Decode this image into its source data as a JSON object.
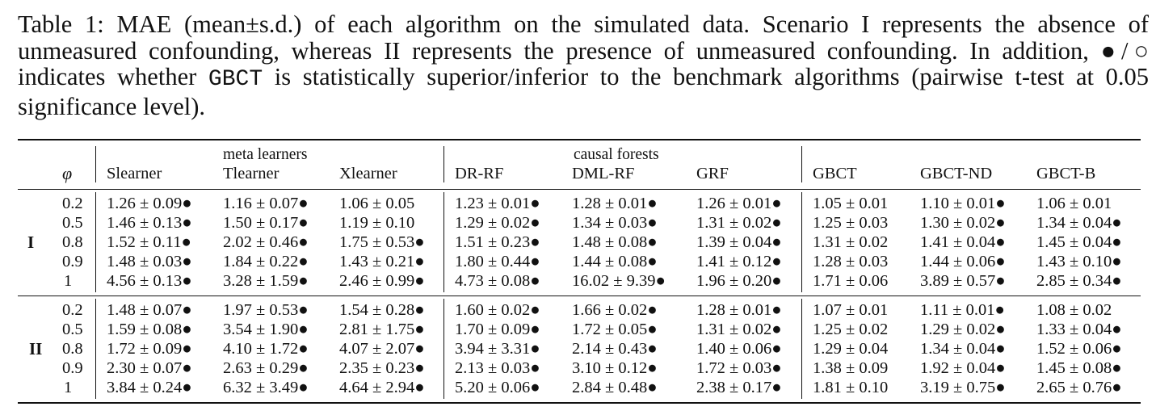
{
  "caption": {
    "p1": "Table 1: MAE (mean±s.d.) of each algorithm on the simulated data. Scenario I represents the absence of unmeasured confounding, whereas II represents the presence of unmeasured confounding. In addition, ●/○ indicates whether ",
    "code": "GBCT",
    "p2": " is statistically superior/inferior to the benchmark algorithms (pairwise t-test at 0.05 significance level)."
  },
  "table": {
    "groups": [
      "meta learners",
      "causal forests"
    ],
    "phi_header": "φ",
    "columns": [
      "Slearner",
      "Tlearner",
      "Xlearner",
      "DR-RF",
      "DML-RF",
      "GRF",
      "GBCT",
      "GBCT-ND",
      "GBCT-B"
    ],
    "scenarios": [
      {
        "label": "I",
        "rows": [
          {
            "phi": "0.2",
            "cells": [
              "1.26 ± 0.09●",
              "1.16 ± 0.07●",
              "1.06 ± 0.05",
              "1.23 ± 0.01●",
              "1.28 ± 0.01●",
              "1.26 ± 0.01●",
              "1.05 ± 0.01",
              "1.10 ± 0.01●",
              "1.06 ± 0.01"
            ]
          },
          {
            "phi": "0.5",
            "cells": [
              "1.46 ± 0.13●",
              "1.50 ± 0.17●",
              "1.19 ± 0.10",
              "1.29 ± 0.02●",
              "1.34 ± 0.03●",
              "1.31 ± 0.02●",
              "1.25 ± 0.03",
              "1.30 ± 0.02●",
              "1.34 ± 0.04●"
            ]
          },
          {
            "phi": "0.8",
            "cells": [
              "1.52 ± 0.11●",
              "2.02 ± 0.46●",
              "1.75 ± 0.53●",
              "1.51 ± 0.23●",
              "1.48 ± 0.08●",
              "1.39 ± 0.04●",
              "1.31 ± 0.02",
              "1.41 ± 0.04●",
              "1.45 ± 0.04●"
            ]
          },
          {
            "phi": "0.9",
            "cells": [
              "1.48 ± 0.03●",
              "1.84 ± 0.22●",
              "1.43 ± 0.21●",
              "1.80 ± 0.44●",
              "1.44 ± 0.08●",
              "1.41 ± 0.12●",
              "1.28 ± 0.03",
              "1.44 ± 0.06●",
              "1.43 ± 0.10●"
            ]
          },
          {
            "phi": "1",
            "cells": [
              "4.56 ± 0.13●",
              "3.28 ± 1.59●",
              "2.46 ± 0.99●",
              "4.73 ± 0.08●",
              "16.02 ± 9.39●",
              "1.96 ± 0.20●",
              "1.71 ± 0.06",
              "3.89 ± 0.57●",
              "2.85 ± 0.34●"
            ]
          }
        ]
      },
      {
        "label": "II",
        "rows": [
          {
            "phi": "0.2",
            "cells": [
              "1.48 ± 0.07●",
              "1.97 ± 0.53●",
              "1.54 ± 0.28●",
              "1.60 ± 0.02●",
              "1.66 ± 0.02●",
              "1.28 ± 0.01●",
              "1.07 ± 0.01",
              "1.11 ± 0.01●",
              "1.08 ± 0.02"
            ]
          },
          {
            "phi": "0.5",
            "cells": [
              "1.59 ± 0.08●",
              "3.54 ± 1.90●",
              "2.81 ± 1.75●",
              "1.70 ± 0.09●",
              "1.72 ± 0.05●",
              "1.31 ± 0.02●",
              "1.25 ± 0.02",
              "1.29 ± 0.02●",
              "1.33 ± 0.04●"
            ]
          },
          {
            "phi": "0.8",
            "cells": [
              "1.72 ± 0.09●",
              "4.10 ± 1.72●",
              "4.07 ± 2.07●",
              "3.94 ± 3.31●",
              "2.14 ± 0.43●",
              "1.40 ± 0.06●",
              "1.29 ± 0.04",
              "1.34 ± 0.04●",
              "1.52 ± 0.06●"
            ]
          },
          {
            "phi": "0.9",
            "cells": [
              "2.30 ± 0.07●",
              "2.63 ± 0.29●",
              "2.35 ± 0.23●",
              "2.13 ± 0.03●",
              "3.10 ± 0.12●",
              "1.72 ± 0.03●",
              "1.38 ± 0.09",
              "1.92 ± 0.04●",
              "1.45 ± 0.08●"
            ]
          },
          {
            "phi": "1",
            "cells": [
              "3.84 ± 0.24●",
              "6.32 ± 3.49●",
              "4.64 ± 2.94●",
              "5.20 ± 0.06●",
              "2.84 ± 0.48●",
              "2.38 ± 0.17●",
              "1.81 ± 0.10",
              "3.19 ± 0.75●",
              "2.65 ± 0.76●"
            ]
          }
        ]
      }
    ]
  }
}
